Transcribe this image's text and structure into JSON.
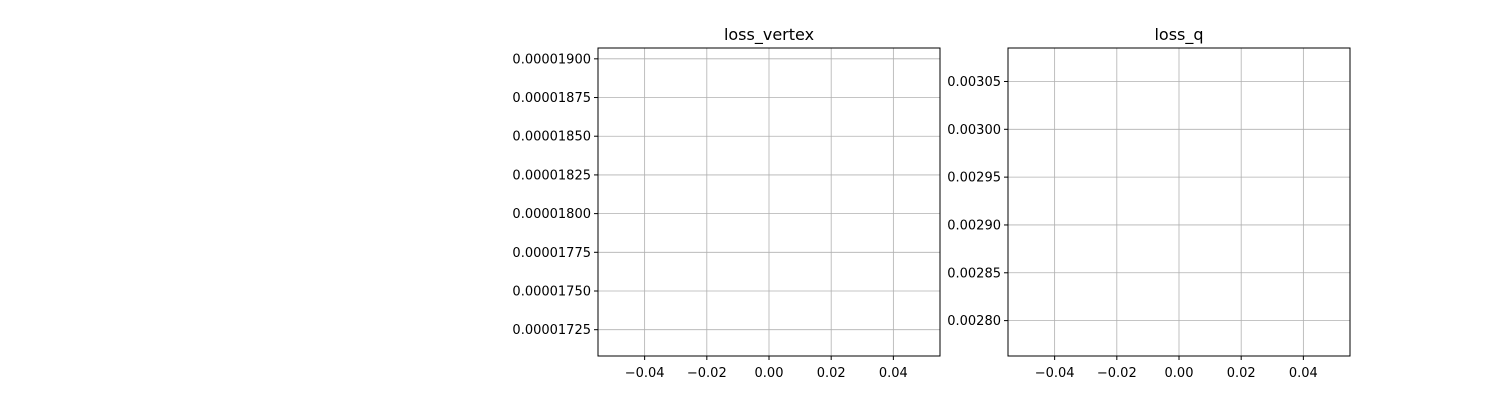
{
  "chart_data": [
    {
      "type": "line",
      "title": "loss_vertex",
      "xlabel": "",
      "ylabel": "",
      "series": [],
      "xlim": [
        -0.055,
        0.055
      ],
      "ylim": [
        1.708e-05,
        1.907e-05
      ],
      "xticks": [
        -0.04,
        -0.02,
        0.0,
        0.02,
        0.04
      ],
      "xtick_labels": [
        "−0.04",
        "−0.02",
        "0.00",
        "0.02",
        "0.04"
      ],
      "yticks": [
        1.725e-05,
        1.75e-05,
        1.775e-05,
        1.8e-05,
        1.825e-05,
        1.85e-05,
        1.875e-05,
        1.9e-05
      ],
      "ytick_labels": [
        "0.00001725",
        "0.00001750",
        "0.00001775",
        "0.00001800",
        "0.00001825",
        "0.00001850",
        "0.00001875",
        "0.00001900"
      ],
      "grid": true
    },
    {
      "type": "line",
      "title": "loss_q",
      "xlabel": "",
      "ylabel": "",
      "series": [],
      "xlim": [
        -0.055,
        0.055
      ],
      "ylim": [
        0.002763,
        0.003085
      ],
      "xticks": [
        -0.04,
        -0.02,
        0.0,
        0.02,
        0.04
      ],
      "xtick_labels": [
        "−0.04",
        "−0.02",
        "0.00",
        "0.02",
        "0.04"
      ],
      "yticks": [
        0.0028,
        0.00285,
        0.0029,
        0.00295,
        0.003,
        0.00305
      ],
      "ytick_labels": [
        "0.00280",
        "0.00285",
        "0.00290",
        "0.00295",
        "0.00300",
        "0.00305"
      ],
      "grid": true
    }
  ],
  "colors": {
    "grid": "#b0b0b0",
    "axes": "#000000",
    "background": "#ffffff"
  }
}
